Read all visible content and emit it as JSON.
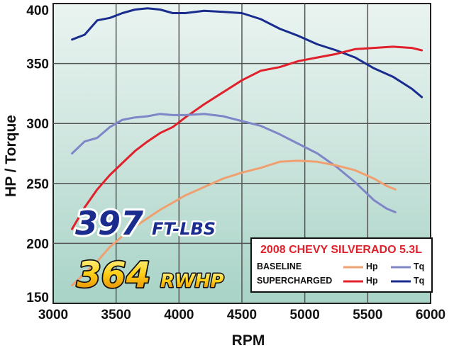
{
  "chart_data": {
    "type": "line",
    "xlabel": "RPM",
    "ylabel": "HP / Torque",
    "xlim": [
      3000,
      6000
    ],
    "ylim": [
      150,
      400
    ],
    "xticks": [
      3000,
      3500,
      4000,
      4500,
      5000,
      5500,
      6000
    ],
    "yticks": [
      150,
      200,
      250,
      300,
      350,
      400
    ],
    "grid": true,
    "series": [
      {
        "group": "SUPERCHARGED",
        "metric": "Tq",
        "color": "#1a2d8f",
        "x": [
          3150,
          3250,
          3350,
          3450,
          3550,
          3650,
          3750,
          3850,
          3950,
          4050,
          4200,
          4350,
          4500,
          4650,
          4800,
          4950,
          5100,
          5250,
          5400,
          5550,
          5700,
          5850,
          5930
        ],
        "y": [
          370,
          374,
          386,
          388,
          392,
          395,
          396,
          395,
          392,
          392,
          394,
          393,
          392,
          387,
          379,
          373,
          366,
          361,
          355,
          346,
          339,
          329,
          322
        ]
      },
      {
        "group": "SUPERCHARGED",
        "metric": "Hp",
        "color": "#e0202a",
        "x": [
          3150,
          3250,
          3350,
          3450,
          3550,
          3650,
          3750,
          3850,
          3950,
          4050,
          4200,
          4350,
          4500,
          4650,
          4800,
          4950,
          5100,
          5250,
          5400,
          5550,
          5700,
          5850,
          5930
        ],
        "y": [
          212,
          230,
          245,
          257,
          267,
          277,
          285,
          292,
          297,
          305,
          316,
          326,
          336,
          344,
          347,
          352,
          355,
          358,
          362,
          363,
          364,
          363,
          361
        ]
      },
      {
        "group": "BASELINE",
        "metric": "Tq",
        "color": "#7f86c8",
        "x": [
          3150,
          3250,
          3350,
          3450,
          3550,
          3650,
          3750,
          3850,
          3950,
          4050,
          4200,
          4350,
          4500,
          4650,
          4800,
          4950,
          5100,
          5250,
          5400,
          5550,
          5650,
          5720
        ],
        "y": [
          275,
          285,
          288,
          297,
          303,
          305,
          306,
          308,
          307,
          307,
          308,
          306,
          302,
          298,
          291,
          283,
          275,
          264,
          251,
          236,
          229,
          226
        ]
      },
      {
        "group": "BASELINE",
        "metric": "Hp",
        "color": "#f0a070",
        "x": [
          3150,
          3250,
          3350,
          3450,
          3550,
          3650,
          3750,
          3850,
          3950,
          4050,
          4200,
          4350,
          4500,
          4650,
          4800,
          4950,
          5100,
          5250,
          5400,
          5550,
          5650,
          5720
        ],
        "y": [
          165,
          175,
          185,
          197,
          206,
          214,
          221,
          228,
          234,
          240,
          247,
          254,
          259,
          263,
          268,
          269,
          268,
          265,
          261,
          254,
          248,
          245
        ]
      }
    ]
  },
  "legend": {
    "title": "2008 CHEVY SILVERADO 5.3L",
    "rows": [
      {
        "label": "BASELINE",
        "items": [
          {
            "text": "Hp",
            "color": "#f0a070"
          },
          {
            "text": "Tq",
            "color": "#7f86c8"
          }
        ]
      },
      {
        "label": "SUPERCHARGED",
        "items": [
          {
            "text": "Hp",
            "color": "#e0202a"
          },
          {
            "text": "Tq",
            "color": "#1a2d8f"
          }
        ]
      }
    ]
  },
  "callouts": {
    "torque": {
      "number": "397",
      "unit": "FT-LBS"
    },
    "horsepower": {
      "number": "364",
      "unit": "RWHP"
    }
  }
}
